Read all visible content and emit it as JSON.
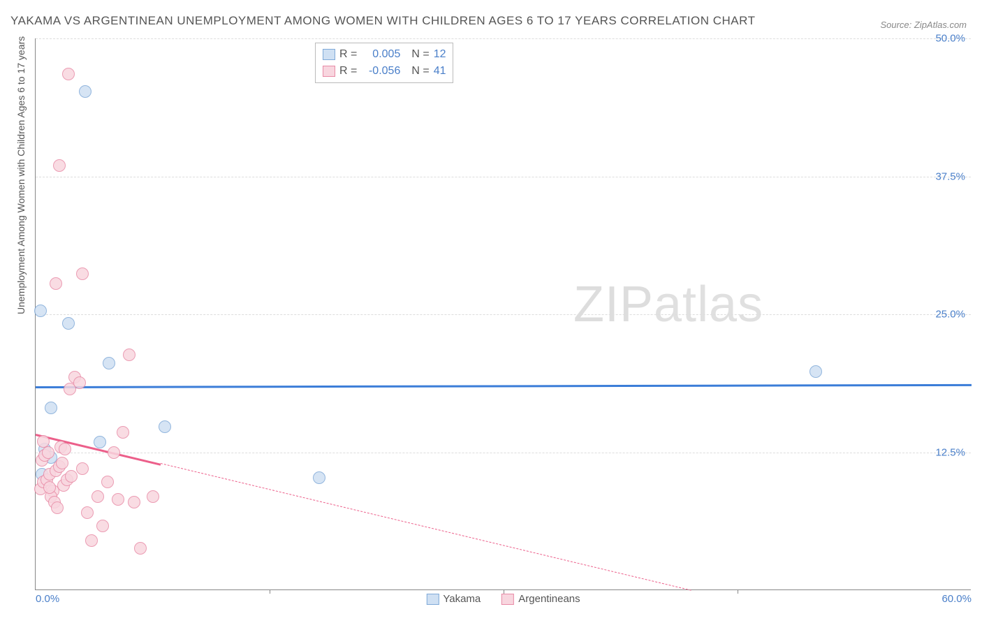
{
  "title": "YAKAMA VS ARGENTINEAN UNEMPLOYMENT AMONG WOMEN WITH CHILDREN AGES 6 TO 17 YEARS CORRELATION CHART",
  "source": "Source: ZipAtlas.com",
  "y_axis_label": "Unemployment Among Women with Children Ages 6 to 17 years",
  "watermark": "ZIPatlas",
  "chart": {
    "type": "scatter",
    "xlim": [
      0,
      60
    ],
    "ylim": [
      0,
      50
    ],
    "x_ticks": [
      0,
      30,
      60
    ],
    "x_tick_labels": [
      "0.0%",
      "",
      "60.0%"
    ],
    "y_ticks": [
      12.5,
      25.0,
      37.5,
      50.0
    ],
    "y_tick_labels": [
      "12.5%",
      "25.0%",
      "37.5%",
      "50.0%"
    ],
    "grid_color": "#dddddd",
    "axis_color": "#888888",
    "background_color": "#ffffff",
    "point_radius": 9,
    "series": [
      {
        "name": "Yakama",
        "fill": "#cfe0f3",
        "stroke": "#7fa9d8",
        "r": "0.005",
        "n": "12",
        "trend": {
          "y1": 18.5,
          "y2": 18.7,
          "solid_x": 60,
          "dash_x": 60,
          "color": "#3b7dd8",
          "width": 3
        },
        "points": [
          [
            0.4,
            10.5
          ],
          [
            0.6,
            12.8
          ],
          [
            1.0,
            16.5
          ],
          [
            0.3,
            25.3
          ],
          [
            2.1,
            24.2
          ],
          [
            3.2,
            45.2
          ],
          [
            4.7,
            20.6
          ],
          [
            8.3,
            14.8
          ],
          [
            4.1,
            13.4
          ],
          [
            18.2,
            10.2
          ],
          [
            50.0,
            19.8
          ],
          [
            1.0,
            12.0
          ]
        ]
      },
      {
        "name": "Argentineans",
        "fill": "#f8d6df",
        "stroke": "#e88ba6",
        "r": "-0.056",
        "n": "41",
        "trend": {
          "y1": 14.2,
          "y2": 0,
          "solid_x": 8,
          "dash_x": 42,
          "color": "#ec5f8a",
          "width": 3
        },
        "points": [
          [
            0.3,
            9.2
          ],
          [
            0.5,
            9.8
          ],
          [
            0.7,
            10.0
          ],
          [
            0.9,
            10.5
          ],
          [
            1.1,
            9.0
          ],
          [
            1.3,
            10.8
          ],
          [
            1.5,
            11.2
          ],
          [
            0.4,
            11.8
          ],
          [
            0.6,
            12.2
          ],
          [
            0.8,
            12.5
          ],
          [
            1.0,
            8.5
          ],
          [
            1.2,
            8.0
          ],
          [
            1.4,
            7.5
          ],
          [
            1.6,
            13.0
          ],
          [
            1.8,
            9.5
          ],
          [
            2.0,
            10.0
          ],
          [
            2.2,
            18.2
          ],
          [
            2.5,
            19.3
          ],
          [
            2.8,
            18.8
          ],
          [
            3.0,
            11.0
          ],
          [
            3.3,
            7.0
          ],
          [
            3.6,
            4.5
          ],
          [
            4.0,
            8.5
          ],
          [
            4.3,
            5.8
          ],
          [
            4.6,
            9.8
          ],
          [
            5.0,
            12.5
          ],
          [
            5.3,
            8.2
          ],
          [
            5.6,
            14.3
          ],
          [
            6.0,
            21.3
          ],
          [
            6.3,
            8.0
          ],
          [
            6.7,
            3.8
          ],
          [
            7.5,
            8.5
          ],
          [
            1.3,
            27.8
          ],
          [
            3.0,
            28.7
          ],
          [
            1.5,
            38.5
          ],
          [
            2.1,
            46.8
          ],
          [
            0.5,
            13.5
          ],
          [
            1.7,
            11.5
          ],
          [
            0.9,
            9.3
          ],
          [
            2.3,
            10.3
          ],
          [
            1.9,
            12.8
          ]
        ]
      }
    ]
  },
  "stats_box": {
    "r_label": "R =",
    "n_label": "N ="
  },
  "legend": {
    "items": [
      "Yakama",
      "Argentineans"
    ]
  },
  "colors": {
    "tick_text": "#4a7fc9",
    "title_text": "#555555"
  }
}
